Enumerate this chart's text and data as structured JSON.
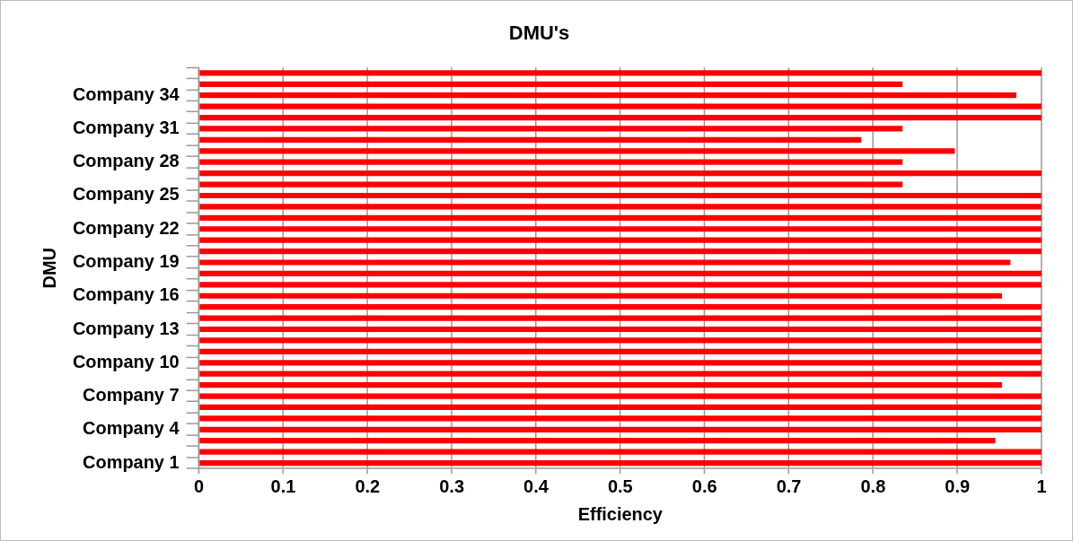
{
  "chart_data": {
    "type": "bar",
    "orientation": "horizontal",
    "title": "DMU's",
    "xlabel": "Efficiency",
    "ylabel": "DMU",
    "categories": [
      null,
      null,
      "Company 34",
      null,
      null,
      "Company 31",
      null,
      null,
      "Company 28",
      null,
      null,
      "Company 25",
      null,
      null,
      "Company 22",
      null,
      null,
      "Company 19",
      null,
      null,
      "Company 16",
      null,
      null,
      "Company 13",
      null,
      null,
      "Company 10",
      null,
      null,
      "Company 7",
      null,
      null,
      "Company 4",
      null,
      null,
      "Company 1"
    ],
    "values": [
      1,
      0.835,
      0.97,
      1,
      1,
      0.835,
      0.786,
      0.897,
      0.835,
      1,
      0.835,
      1,
      1,
      1,
      1,
      1,
      1,
      0.963,
      1,
      1,
      0.953,
      1,
      1,
      1,
      1,
      1,
      1,
      1,
      0.953,
      1,
      1,
      1,
      1,
      0.945,
      1,
      1
    ],
    "color": "#ff0000",
    "xlim": [
      0,
      1
    ],
    "xticks": [
      0,
      0.1,
      0.2,
      0.3,
      0.4,
      0.5,
      0.6,
      0.7,
      0.8,
      0.9,
      1
    ],
    "grid": "x",
    "legend": false
  }
}
